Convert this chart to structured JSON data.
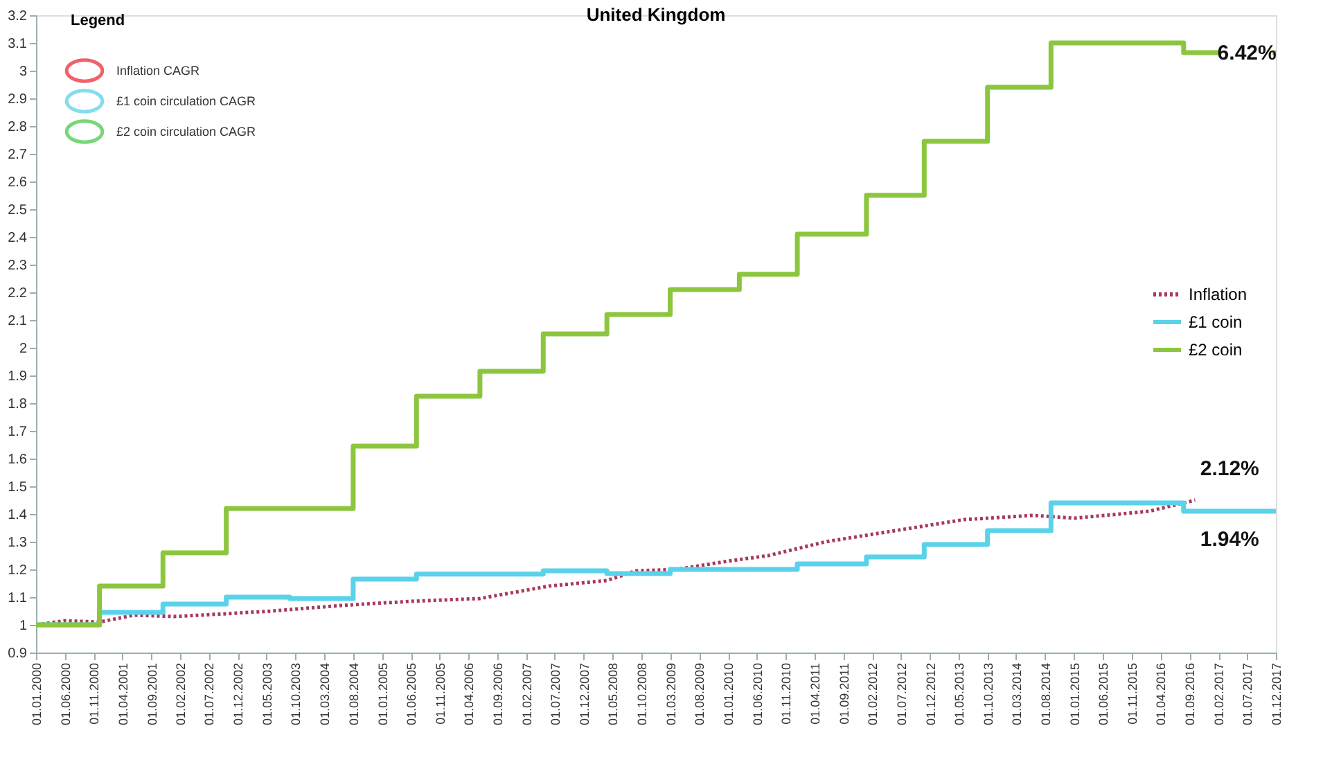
{
  "chart_data": {
    "type": "line",
    "title": "United Kingdom",
    "xlim": [
      "2000-01",
      "2017-12"
    ],
    "xticks": [
      {
        "value": "2000-01",
        "label": "01.01.2000"
      },
      {
        "value": "2000-06",
        "label": "01.06.2000"
      },
      {
        "value": "2000-11",
        "label": "01.11.2000"
      },
      {
        "value": "2001-04",
        "label": "01.04.2001"
      },
      {
        "value": "2001-09",
        "label": "01.09.2001"
      },
      {
        "value": "2002-02",
        "label": "01.02.2002"
      },
      {
        "value": "2002-07",
        "label": "01.07.2002"
      },
      {
        "value": "2002-12",
        "label": "01.12.2002"
      },
      {
        "value": "2003-05",
        "label": "01.05.2003"
      },
      {
        "value": "2003-10",
        "label": "01.10.2003"
      },
      {
        "value": "2004-03",
        "label": "01.03.2004"
      },
      {
        "value": "2004-08",
        "label": "01.08.2004"
      },
      {
        "value": "2005-01",
        "label": "01.01.2005"
      },
      {
        "value": "2005-06",
        "label": "01.06.2005"
      },
      {
        "value": "2005-11",
        "label": "01.11.2005"
      },
      {
        "value": "2006-04",
        "label": "01.04.2006"
      },
      {
        "value": "2006-09",
        "label": "01.09.2006"
      },
      {
        "value": "2007-02",
        "label": "01.02.2007"
      },
      {
        "value": "2007-07",
        "label": "01.07.2007"
      },
      {
        "value": "2007-12",
        "label": "01.12.2007"
      },
      {
        "value": "2008-05",
        "label": "01.05.2008"
      },
      {
        "value": "2008-10",
        "label": "01.10.2008"
      },
      {
        "value": "2009-03",
        "label": "01.03.2009"
      },
      {
        "value": "2009-08",
        "label": "01.08.2009"
      },
      {
        "value": "2010-01",
        "label": "01.01.2010"
      },
      {
        "value": "2010-06",
        "label": "01.06.2010"
      },
      {
        "value": "2010-11",
        "label": "01.11.2010"
      },
      {
        "value": "2011-04",
        "label": "01.04.2011"
      },
      {
        "value": "2011-09",
        "label": "01.09.2011"
      },
      {
        "value": "2012-02",
        "label": "01.02.2012"
      },
      {
        "value": "2012-07",
        "label": "01.07.2012"
      },
      {
        "value": "2012-12",
        "label": "01.12.2012"
      },
      {
        "value": "2013-05",
        "label": "01.05.2013"
      },
      {
        "value": "2013-10",
        "label": "01.10.2013"
      },
      {
        "value": "2014-03",
        "label": "01.03.2014"
      },
      {
        "value": "2014-08",
        "label": "01.08.2014"
      },
      {
        "value": "2015-01",
        "label": "01.01.2015"
      },
      {
        "value": "2015-06",
        "label": "01.06.2015"
      },
      {
        "value": "2015-11",
        "label": "01.11.2015"
      },
      {
        "value": "2016-04",
        "label": "01.04.2016"
      },
      {
        "value": "2016-09",
        "label": "01.09.2016"
      },
      {
        "value": "2017-02",
        "label": "01.02.2017"
      },
      {
        "value": "2017-07",
        "label": "01.07.2017"
      },
      {
        "value": "2017-12",
        "label": "01.12.2017"
      }
    ],
    "ylim": [
      0.9,
      3.2
    ],
    "yticks": [
      0.9,
      1,
      1.1,
      1.2,
      1.3,
      1.4,
      1.5,
      1.6,
      1.7,
      1.8,
      1.9,
      2,
      2.1,
      2.2,
      2.3,
      2.4,
      2.5,
      2.6,
      2.7,
      2.8,
      2.9,
      3,
      3.1,
      3.2
    ],
    "grid": false,
    "legend": "right",
    "series": [
      {
        "name": "Inflation",
        "type": "line",
        "line_style": "dotted",
        "color": "#a8385e",
        "x": [
          "2000-01",
          "2000-06",
          "2000-12",
          "2001-06",
          "2002-01",
          "2002-10",
          "2003-06",
          "2004-06",
          "2005-06",
          "2006-06",
          "2007-06",
          "2008-04",
          "2008-09",
          "2009-04",
          "2010-01",
          "2010-08",
          "2011-06",
          "2012-06",
          "2013-06",
          "2014-06",
          "2015-01",
          "2015-09",
          "2016-02",
          "2016-06",
          "2016-10"
        ],
        "values": [
          1.0,
          1.015,
          1.01,
          1.035,
          1.03,
          1.04,
          1.05,
          1.07,
          1.085,
          1.095,
          1.14,
          1.16,
          1.195,
          1.2,
          1.23,
          1.25,
          1.3,
          1.34,
          1.38,
          1.395,
          1.385,
          1.4,
          1.41,
          1.43,
          1.45
        ]
      },
      {
        "name": "£1 coin",
        "type": "step",
        "line_style": "solid",
        "color": "#5ad2ea",
        "x": [
          "2000-01",
          "2000-12",
          "2001-11",
          "2002-10",
          "2003-09",
          "2004-08",
          "2005-07",
          "2007-05",
          "2008-04",
          "2009-03",
          "2011-01",
          "2012-01",
          "2012-11",
          "2013-10",
          "2014-09",
          "2016-08",
          "2017-12"
        ],
        "values": [
          1.0,
          1.045,
          1.075,
          1.1,
          1.095,
          1.165,
          1.183,
          1.195,
          1.185,
          1.2,
          1.22,
          1.245,
          1.29,
          1.34,
          1.44,
          1.41,
          1.41
        ]
      },
      {
        "name": "£2 coin",
        "type": "step",
        "line_style": "solid",
        "color": "#8cc63f",
        "x": [
          "2000-01",
          "2000-12",
          "2001-11",
          "2002-10",
          "2004-08",
          "2005-07",
          "2006-06",
          "2007-05",
          "2008-04",
          "2009-03",
          "2010-03",
          "2011-01",
          "2012-01",
          "2012-11",
          "2013-10",
          "2014-09",
          "2016-08",
          "2017-12"
        ],
        "values": [
          1.0,
          1.14,
          1.26,
          1.42,
          1.645,
          1.825,
          1.915,
          2.05,
          2.12,
          2.21,
          2.265,
          2.41,
          2.55,
          2.745,
          2.94,
          3.1,
          3.065,
          3.065
        ]
      }
    ],
    "annotations": [
      "Legend",
      "Inflation CAGR",
      "£1 coin circulation CAGR",
      "£2 coin circulation CAGR",
      {
        "text": "2.12%",
        "x": "2017-04",
        "y": 1.565
      },
      {
        "text": "1.94%",
        "x": "2017-04",
        "y": 1.31
      },
      {
        "text": "6.42%",
        "x": "2017-07",
        "y": 3.065
      }
    ]
  }
}
